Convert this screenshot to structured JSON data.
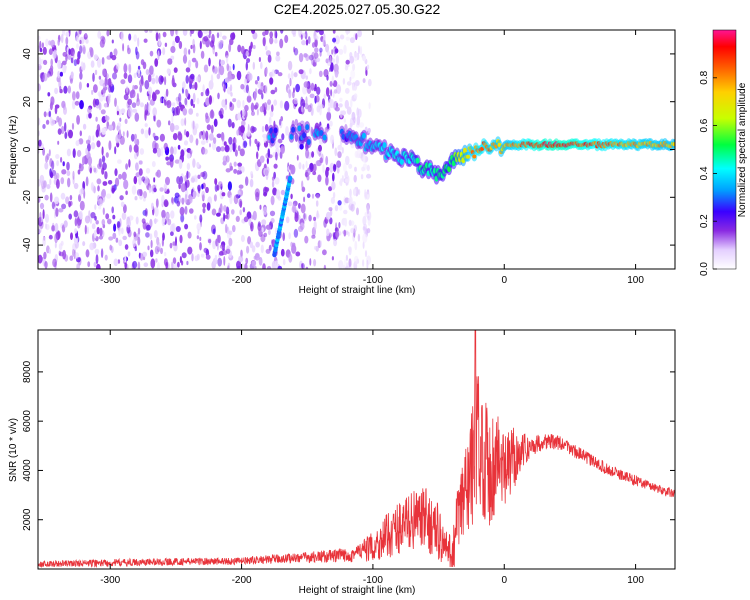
{
  "title": "C2E4.2025.027.05.30.G22",
  "chart_data": [
    {
      "type": "heatmap",
      "xlabel": "Height of straight line (km)",
      "ylabel": "Frequency (Hz)",
      "xlim": [
        -355,
        130
      ],
      "ylim": [
        -50,
        50
      ],
      "xticks": [
        -300,
        -200,
        -100,
        0,
        100
      ],
      "yticks": [
        -40,
        -20,
        0,
        20,
        40
      ],
      "colorbar": {
        "label": "Normalized spectral amplitude",
        "range": [
          0,
          1
        ],
        "ticks": [
          "0.0",
          "0.2",
          "0.4",
          "0.6",
          "0.8"
        ],
        "stops": [
          "#ffffff",
          "#6a00ff",
          "#0000ff",
          "#00e5ff",
          "#00ff00",
          "#ffff00",
          "#ff8000",
          "#ff0000",
          "#ff1493"
        ]
      },
      "ridge": {
        "x": [
          -120,
          -100,
          -80,
          -60,
          -50,
          -40,
          -30,
          -20,
          -10,
          0,
          20,
          40,
          60,
          80,
          100,
          130
        ],
        "y": [
          5,
          2,
          -3,
          -8,
          -11,
          -5,
          -2,
          0,
          1,
          2,
          2,
          2,
          2,
          2,
          2,
          2
        ],
        "amplitude": [
          0.35,
          0.4,
          0.45,
          0.5,
          0.5,
          0.55,
          0.75,
          0.9,
          0.85,
          0.8,
          0.95,
          1.0,
          0.95,
          0.9,
          0.85,
          0.8
        ]
      },
      "streak": {
        "x": [
          -175,
          -163
        ],
        "y": [
          -44,
          -12
        ],
        "amplitude": 0.35
      },
      "noise_region_xlim": [
        -355,
        -110
      ]
    },
    {
      "type": "line",
      "xlabel": "Height of straight line (km)",
      "ylabel": "SNR (10 * v/v)",
      "xlim": [
        -355,
        130
      ],
      "ylim": [
        0,
        9700
      ],
      "xticks": [
        -300,
        -200,
        -100,
        0,
        100
      ],
      "yticks": [
        2000,
        4000,
        6000,
        8000
      ],
      "series": [
        {
          "color": "#e8333a",
          "x": [
            -355,
            -300,
            -250,
            -200,
            -160,
            -140,
            -120,
            -110,
            -100,
            -90,
            -80,
            -70,
            -60,
            -50,
            -45,
            -40,
            -35,
            -30,
            -25,
            -20,
            -15,
            -10,
            -5,
            0,
            5,
            10,
            20,
            30,
            40,
            50,
            60,
            70,
            80,
            90,
            100,
            110,
            120,
            130
          ],
          "y": [
            200,
            250,
            300,
            320,
            450,
            500,
            550,
            700,
            900,
            1300,
            1700,
            2000,
            2000,
            1500,
            800,
            600,
            2000,
            3000,
            4000,
            5500,
            4500,
            4000,
            4600,
            3800,
            4300,
            4700,
            4950,
            5200,
            5150,
            4900,
            4600,
            4300,
            4000,
            3800,
            3600,
            3400,
            3200,
            3050
          ],
          "noise_amplitude": [
            120,
            150,
            150,
            150,
            200,
            250,
            300,
            400,
            600,
            900,
            1100,
            1200,
            1300,
            1200,
            900,
            700,
            1800,
            2200,
            2500,
            2800,
            2500,
            2500,
            2200,
            1500,
            1600,
            1000,
            400,
            350,
            300,
            280,
            260,
            250,
            240,
            230,
            220,
            200,
            180,
            180
          ],
          "peak": {
            "x": -22,
            "y": 9700
          }
        }
      ]
    }
  ]
}
